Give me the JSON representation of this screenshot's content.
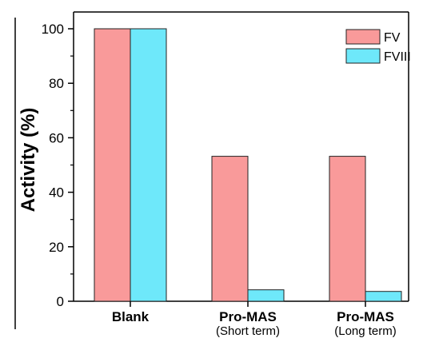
{
  "chart_data": {
    "type": "bar",
    "categories": [
      "Blank",
      "Pro-MAS",
      "Pro-MAS"
    ],
    "category_sublabels": [
      "",
      "(Short term)",
      "(Long term)"
    ],
    "series": [
      {
        "name": "FV",
        "values": [
          100,
          53.2,
          53.2
        ],
        "color": "#f99a9a"
      },
      {
        "name": "FVIII",
        "values": [
          100,
          4.2,
          3.6
        ],
        "color": "#6ee8fa"
      }
    ],
    "ylabel": "Activity (%)",
    "xlabel": "",
    "ylim": [
      0,
      100
    ],
    "yticks": [
      "0",
      "20",
      "40",
      "60",
      "80",
      "100"
    ],
    "legend_position": "top-right",
    "grid": false
  }
}
